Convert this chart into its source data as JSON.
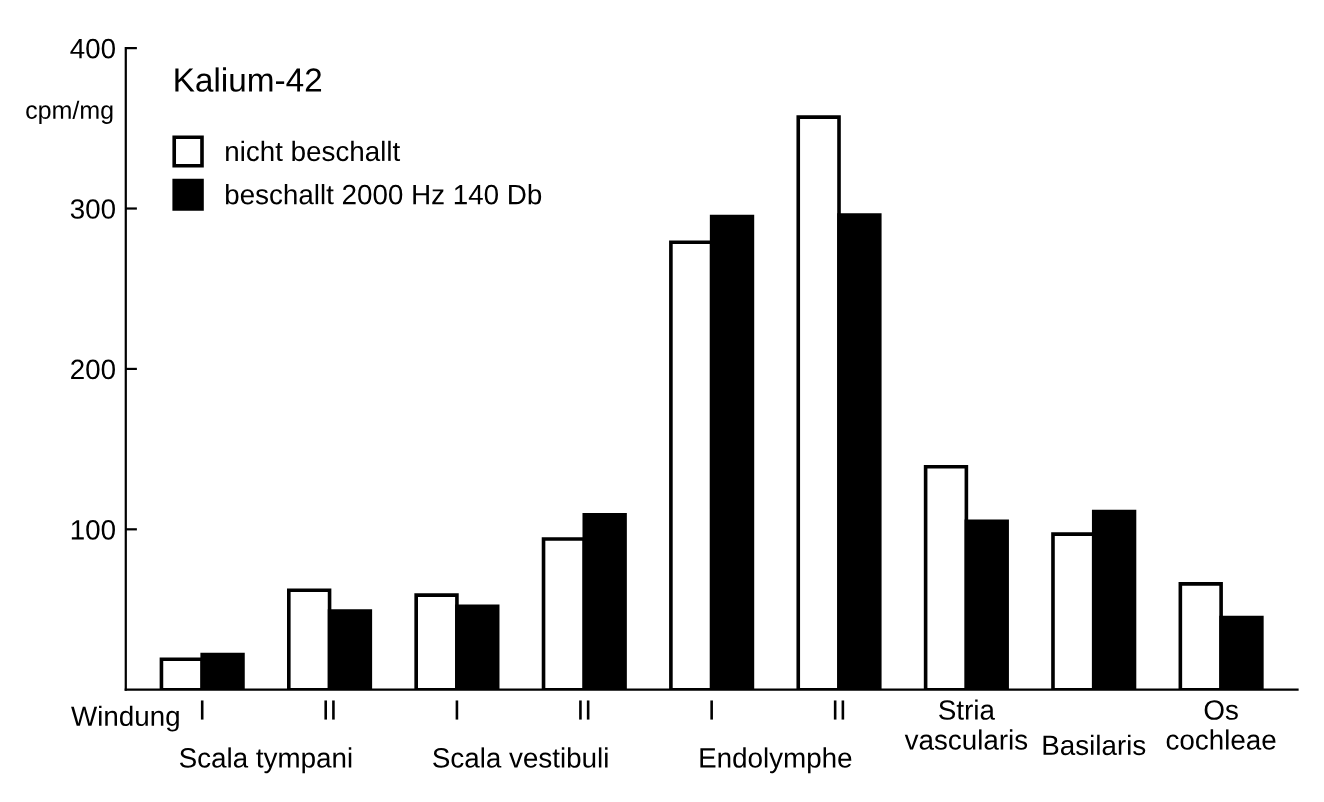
{
  "chart_data": {
    "type": "bar",
    "title": "Kalium-42",
    "ylabel": "cpm/mg",
    "xlabel": "Windung",
    "categories": [
      "I",
      "II",
      "I",
      "II",
      "I",
      "II",
      "Stria\nvascularis",
      "Basilaris",
      "Os\ncochleae"
    ],
    "series": [
      {
        "name": "nicht beschallt",
        "color": "#ffffff",
        "values": [
          19,
          62,
          59,
          94,
          279,
          357,
          139,
          97,
          66
        ]
      },
      {
        "name": "beschallt 2000 Hz 140 Db",
        "color": "#000000",
        "values": [
          22,
          49,
          52,
          109,
          295,
          296,
          105,
          111,
          45
        ]
      }
    ],
    "annotations": [
      "Scala tympani",
      "Scala vestibuli",
      "Endolymphe"
    ],
    "ylim": [
      0,
      400
    ],
    "yticks": [
      100,
      200,
      300,
      400
    ],
    "grid": false,
    "legend": "top left"
  }
}
